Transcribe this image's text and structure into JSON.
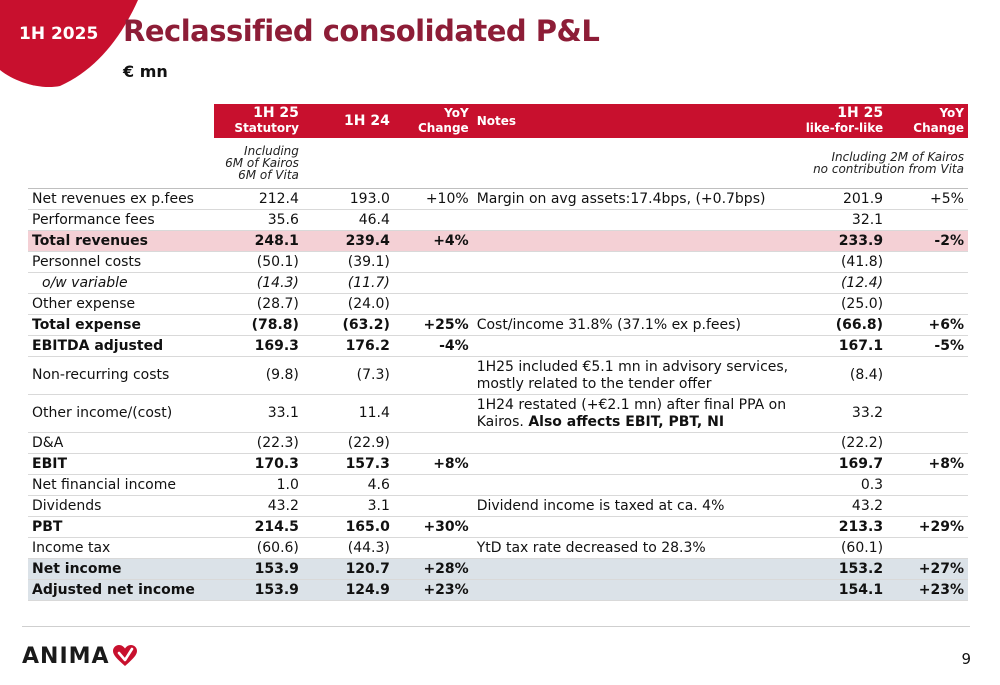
{
  "header": {
    "badge": "1H 2025",
    "title": "Reclassified consolidated P&L",
    "subtitle": "€ mn"
  },
  "columns": {
    "c1_line1": "1H 25",
    "c1_line2": "Statutory",
    "c2": "1H 24",
    "c3_line1": "YoY",
    "c3_line2": "Change",
    "c4": "Notes",
    "c5_line1": "1H 25",
    "c5_line2": "like-for-like",
    "c6_line1": "YoY",
    "c6_line2": "Change"
  },
  "column_notes": {
    "statutory_line1": "Including",
    "statutory_line2": "6M of Kairos",
    "statutory_line3": "6M of Vita",
    "lfl_line1": "Including 2M of Kairos",
    "lfl_line2": "no contribution from Vita"
  },
  "rows": [
    {
      "label": "Net revenues ex p.fees",
      "stat": "212.4",
      "prev": "193.0",
      "yoy": "+10%",
      "note": "Margin on avg assets:17.4bps, (+0.7bps)",
      "lfl": "201.9",
      "lfl_yoy": "+5%"
    },
    {
      "label": "Performance fees",
      "stat": "35.6",
      "prev": "46.4",
      "yoy": "",
      "note": "",
      "lfl": "32.1",
      "lfl_yoy": ""
    },
    {
      "label": "Total revenues",
      "stat": "248.1",
      "prev": "239.4",
      "yoy": "+4%",
      "note": "",
      "lfl": "233.9",
      "lfl_yoy": "-2%"
    },
    {
      "label": "Personnel costs",
      "stat": "(50.1)",
      "prev": "(39.1)",
      "yoy": "",
      "note": "",
      "lfl": "(41.8)",
      "lfl_yoy": ""
    },
    {
      "label": "o/w variable",
      "stat": "(14.3)",
      "prev": "(11.7)",
      "yoy": "",
      "note": "",
      "lfl": "(12.4)",
      "lfl_yoy": ""
    },
    {
      "label": "Other expense",
      "stat": "(28.7)",
      "prev": "(24.0)",
      "yoy": "",
      "note": "",
      "lfl": "(25.0)",
      "lfl_yoy": ""
    },
    {
      "label": "Total expense",
      "stat": "(78.8)",
      "prev": "(63.2)",
      "yoy": "+25%",
      "note": "Cost/income 31.8% (37.1% ex p.fees)",
      "lfl": "(66.8)",
      "lfl_yoy": "+6%"
    },
    {
      "label": "EBITDA adjusted",
      "stat": "169.3",
      "prev": "176.2",
      "yoy": "-4%",
      "note": "",
      "lfl": "167.1",
      "lfl_yoy": "-5%"
    },
    {
      "label": "Non-recurring costs",
      "stat": "(9.8)",
      "prev": "(7.3)",
      "yoy": "",
      "note_line1": "1H25 included €5.1 mn in advisory services,",
      "note_line2": "mostly related to the tender offer",
      "lfl": "(8.4)",
      "lfl_yoy": ""
    },
    {
      "label": "Other income/(cost)",
      "stat": "33.1",
      "prev": "11.4",
      "yoy": "",
      "note_line1": "1H24 restated (+€2.1 mn) after final PPA on",
      "note_line2a": "Kairos. ",
      "note_line2b": "Also affects EBIT, PBT, NI",
      "lfl": "33.2",
      "lfl_yoy": ""
    },
    {
      "label": "D&A",
      "stat": "(22.3)",
      "prev": "(22.9)",
      "yoy": "",
      "note": "",
      "lfl": "(22.2)",
      "lfl_yoy": ""
    },
    {
      "label": "EBIT",
      "stat": "170.3",
      "prev": "157.3",
      "yoy": "+8%",
      "note": "",
      "lfl": "169.7",
      "lfl_yoy": "+8%"
    },
    {
      "label": "Net financial income",
      "stat": "1.0",
      "prev": "4.6",
      "yoy": "",
      "note": "",
      "lfl": "0.3",
      "lfl_yoy": ""
    },
    {
      "label": "Dividends",
      "stat": "43.2",
      "prev": "3.1",
      "yoy": "",
      "note": "Dividend income is taxed at ca. 4%",
      "lfl": "43.2",
      "lfl_yoy": ""
    },
    {
      "label": "PBT",
      "stat": "214.5",
      "prev": "165.0",
      "yoy": "+30%",
      "note": "",
      "lfl": "213.3",
      "lfl_yoy": "+29%"
    },
    {
      "label": "Income tax",
      "stat": "(60.6)",
      "prev": "(44.3)",
      "yoy": "",
      "note": "YtD tax rate decreased to 28.3%",
      "lfl": "(60.1)",
      "lfl_yoy": ""
    },
    {
      "label": "Net income",
      "stat": "153.9",
      "prev": "120.7",
      "yoy": "+28%",
      "note": "",
      "lfl": "153.2",
      "lfl_yoy": "+27%"
    },
    {
      "label": "Adjusted net income",
      "stat": "153.9",
      "prev": "124.9",
      "yoy": "+23%",
      "note": "",
      "lfl": "154.1",
      "lfl_yoy": "+23%"
    }
  ],
  "footer": {
    "logo": "ANIMA",
    "page": "9"
  },
  "colors": {
    "brand_red": "#c8102e",
    "title_red": "#8d1d37",
    "pink_row": "#f4d0d5",
    "grey_row": "#dbe2e8"
  }
}
